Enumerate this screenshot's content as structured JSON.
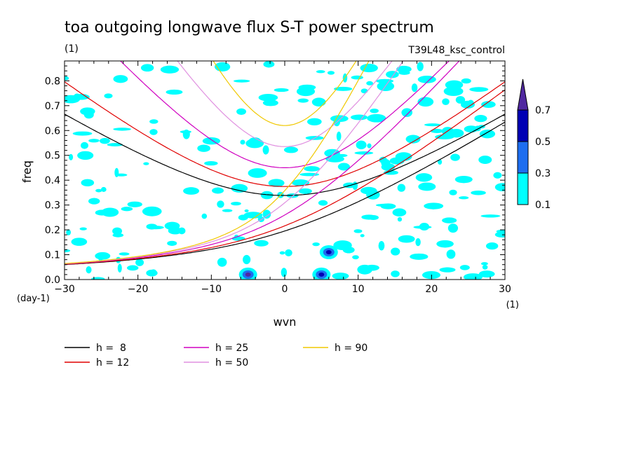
{
  "chart_data": {
    "type": "contour",
    "title": "toa outgoing longwave flux S-T power spectrum",
    "units_label": "(1)",
    "run_label": "T39L48_ksc_control",
    "xlabel": "wvn",
    "ylabel": "freq",
    "x_unit_label": "(1)",
    "y_unit_label": "(day-1)",
    "xlim": [
      -30,
      30
    ],
    "ylim": [
      0,
      0.88
    ],
    "x_ticks": [
      -30,
      -20,
      -10,
      0,
      10,
      20,
      30
    ],
    "y_ticks": [
      0.0,
      0.1,
      0.2,
      0.3,
      0.4,
      0.5,
      0.6,
      0.7,
      0.8
    ],
    "x_tick_labels": [
      "−30",
      "−20",
      "−10",
      "0",
      "10",
      "20",
      "30"
    ],
    "y_tick_labels": [
      "0.0",
      "0.1",
      "0.2",
      "0.3",
      "0.4",
      "0.5",
      "0.6",
      "0.7",
      "0.8"
    ],
    "colorbar": {
      "levels": [
        0.1,
        0.3,
        0.5,
        0.7
      ],
      "labels": [
        "0.1",
        "0.3",
        "0.5",
        "0.7"
      ],
      "colors": [
        "#00ffff",
        "#1e6ef0",
        "#0000b4",
        "#5028a0"
      ]
    },
    "dispersion_curves": [
      {
        "name": "h =  8",
        "h": 8,
        "color": "#000000"
      },
      {
        "name": "h = 12",
        "h": 12,
        "color": "#e00000"
      },
      {
        "name": "h = 25",
        "h": 25,
        "color": "#d000c0"
      },
      {
        "name": "h = 50",
        "h": 50,
        "color": "#e090e0"
      },
      {
        "name": "h = 90",
        "h": 90,
        "color": "#f0c800"
      }
    ],
    "notable_peaks": [
      {
        "wvn": -5,
        "freq": 0.02,
        "level": 0.7
      },
      {
        "wvn": 5,
        "freq": 0.02,
        "level": 0.5
      },
      {
        "wvn": 6,
        "freq": 0.11,
        "level": 0.5
      }
    ]
  }
}
